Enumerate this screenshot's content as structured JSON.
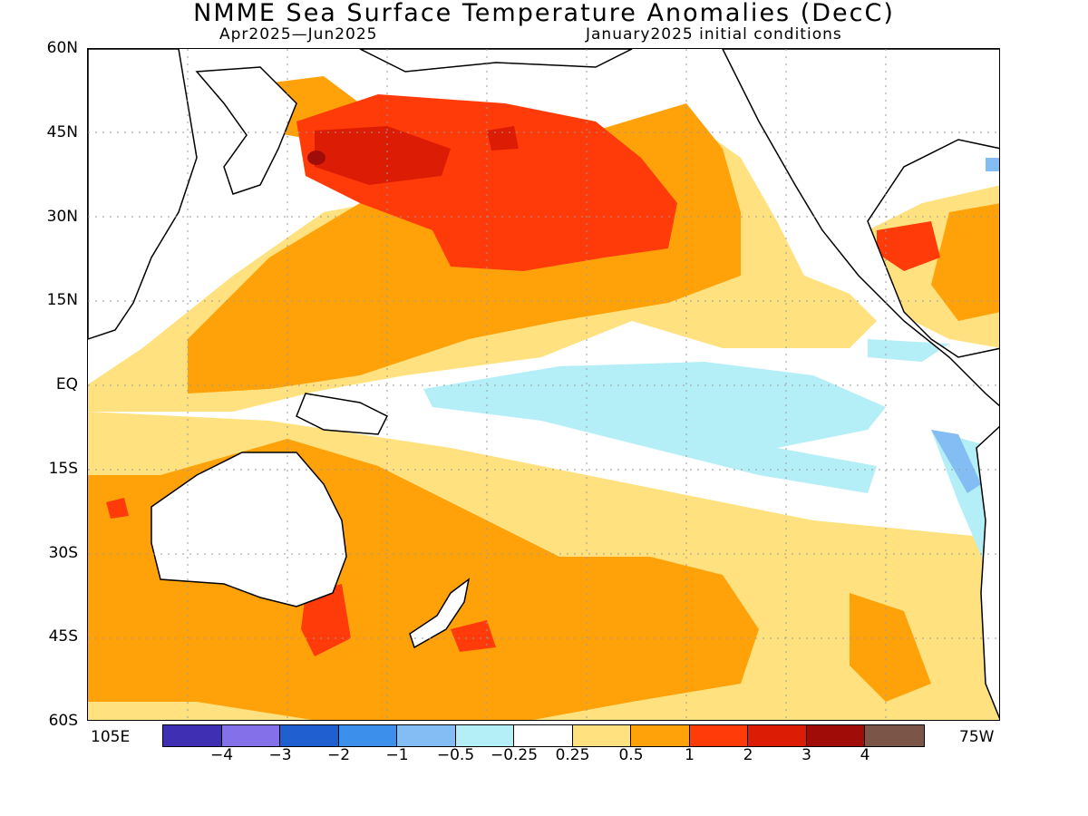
{
  "title": "NMME Sea Surface Temperature Anomalies (DecC)",
  "subtitle_left": "Apr2025—Jun2025",
  "subtitle_right": "January2025 initial conditions",
  "lat_labels": [
    "60N",
    "45N",
    "30N",
    "15N",
    "EQ",
    "15S",
    "30S",
    "45S",
    "60S"
  ],
  "lon_labels": {
    "west": "105E",
    "east": "75W"
  },
  "colorbar": {
    "colors": [
      "#3f2fb3",
      "#8470e8",
      "#1f5fd0",
      "#3d8fec",
      "#84bdf4",
      "#b4eef6",
      "#ffffff",
      "#ffe27f",
      "#ffa20a",
      "#ff3b0a",
      "#dd1c05",
      "#a00c08",
      "#7b5548"
    ],
    "labels": [
      "-4",
      "-3",
      "-2",
      "-1",
      "-0.5",
      "-0.25",
      "0.25",
      "0.5",
      "1",
      "2",
      "3",
      "4"
    ]
  },
  "colors": {
    "land_outline": "#000000",
    "grid": "#9a9a9a",
    "anom_0_25": "#ffe27f",
    "anom_0_5": "#ffa20a",
    "anom_1": "#ff3b0a",
    "anom_2": "#dd1c05",
    "anom_3": "#a00c08",
    "anom_4": "#7b5548",
    "anom_neg_0_25": "#b4eef6",
    "anom_neg_0_5": "#84bdf4",
    "anom_neg_1": "#3d8fec"
  }
}
